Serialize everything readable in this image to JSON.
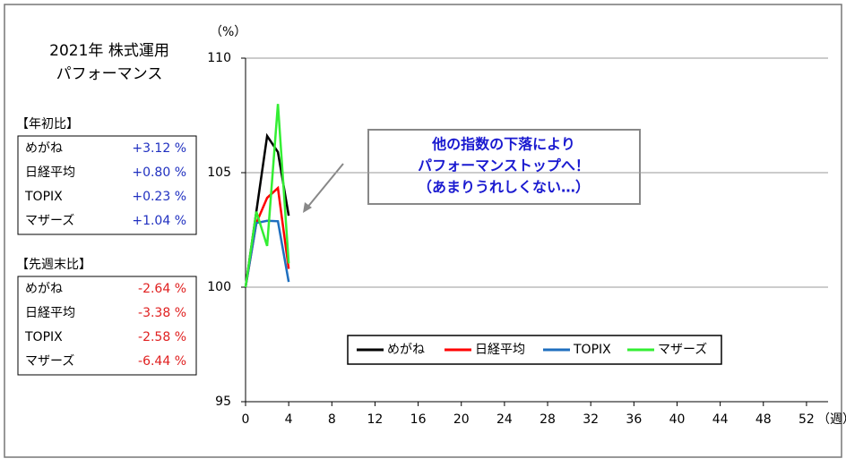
{
  "title_lines": [
    "2021年 株式運用",
    "パフォーマンス"
  ],
  "tables": [
    {
      "heading": "【年初比】",
      "rows": [
        [
          "めがね",
          "+3.12 %"
        ],
        [
          "日経平均",
          "+0.80 %"
        ],
        [
          "TOPIX",
          "+0.23 %"
        ],
        [
          "マザーズ",
          "+1.04 %"
        ]
      ],
      "color": "#2030c0"
    },
    {
      "heading": "【先週末比】",
      "rows": [
        [
          "めがね",
          "-2.64 %"
        ],
        [
          "日経平均",
          "-3.38 %"
        ],
        [
          "TOPIX",
          "-2.58 %"
        ],
        [
          "マザーズ",
          "-6.44 %"
        ]
      ],
      "color": "#e02020"
    }
  ],
  "chart_data": {
    "type": "line",
    "y_unit": "（%）",
    "x_unit": "（週）",
    "x": [
      0,
      1,
      2,
      3,
      4
    ],
    "series": [
      {
        "name": "めがね",
        "color": "#000000",
        "values": [
          100,
          103.3,
          106.6,
          105.9,
          103.12
        ]
      },
      {
        "name": "日経平均",
        "color": "#ff0000",
        "values": [
          100,
          102.8,
          103.9,
          104.33,
          100.8
        ]
      },
      {
        "name": "TOPIX",
        "color": "#1f6fbf",
        "values": [
          100,
          102.8,
          102.9,
          102.88,
          100.23
        ]
      },
      {
        "name": "マザーズ",
        "color": "#33ee33",
        "values": [
          100,
          103.3,
          101.8,
          108.0,
          101.04
        ]
      }
    ],
    "xlim": [
      0,
      54
    ],
    "xticks": [
      0,
      4,
      8,
      12,
      16,
      20,
      24,
      28,
      32,
      36,
      40,
      44,
      48,
      52
    ],
    "ylim": [
      95,
      110
    ],
    "yticks": [
      95,
      100,
      105,
      110
    ],
    "grid": true,
    "annotation": [
      "他の指数の下落により",
      "パフォーマンストップへ！",
      "（あまりうれしくない…）"
    ]
  }
}
